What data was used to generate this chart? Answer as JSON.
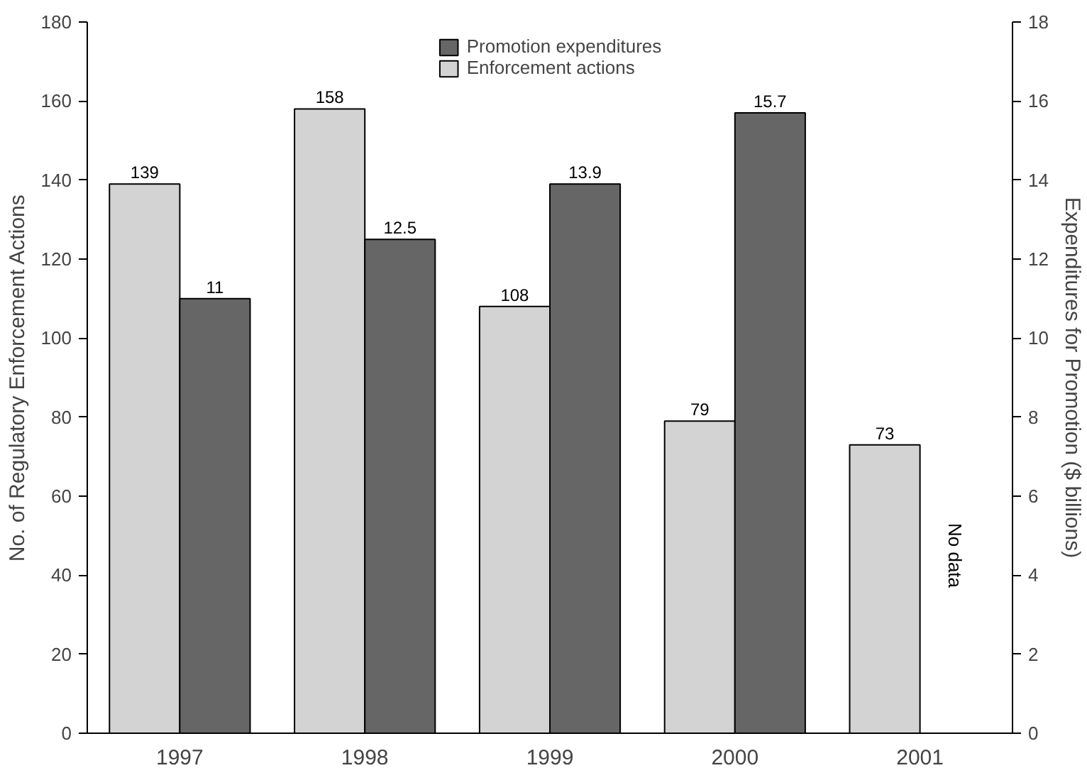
{
  "chart_data": {
    "type": "bar",
    "categories": [
      "1997",
      "1998",
      "1999",
      "2000",
      "2001"
    ],
    "series": [
      {
        "name": "Enforcement actions",
        "color": "#d3d3d3",
        "values": [
          139,
          158,
          108,
          79,
          73
        ]
      },
      {
        "name": "Promotion expenditures",
        "color": "#666666",
        "values": [
          11,
          12.5,
          13.9,
          15.7,
          null
        ],
        "axis": "y2"
      }
    ],
    "ylabel": "No. of Regulatory Enforcement Actions",
    "y2label": "Expenditures for Promotion ($ billions)",
    "ylim": [
      0,
      180
    ],
    "yticks": [
      0,
      20,
      40,
      60,
      80,
      100,
      120,
      140,
      160,
      180
    ],
    "y2lim": [
      0,
      18
    ],
    "y2ticks": [
      0,
      2,
      4,
      6,
      8,
      10,
      12,
      14,
      16,
      18
    ],
    "annotations": [
      {
        "text": "No data",
        "x": "2001",
        "y": 45
      }
    ],
    "data_labels": true,
    "legend": "top",
    "grid": false
  }
}
